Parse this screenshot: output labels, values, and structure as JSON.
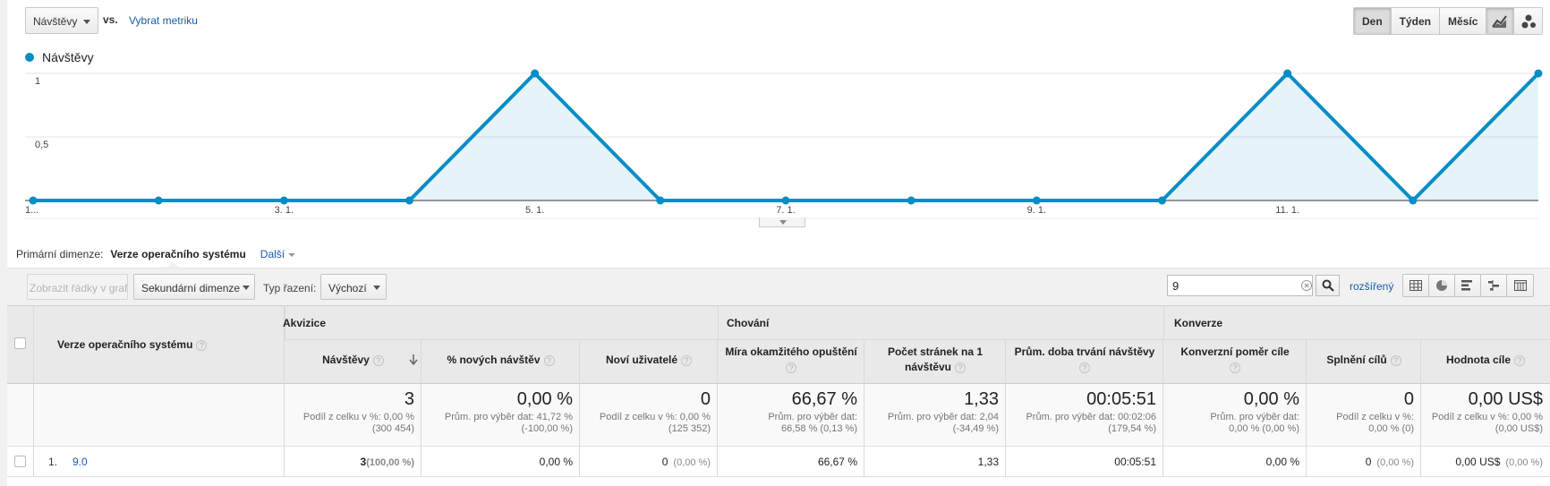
{
  "header": {
    "metric_select": "Návštěvy",
    "vs_label": "vs.",
    "choose_metric": "Vybrat metriku",
    "period_buttons": [
      "Den",
      "Týden",
      "Měsíc"
    ],
    "active_period": "Den"
  },
  "chart_data": {
    "type": "area",
    "series": [
      {
        "name": "Návštěvy",
        "color": "#058dc7",
        "values": [
          0,
          0,
          0,
          0,
          1,
          0,
          0,
          0,
          0,
          0,
          1,
          0,
          1
        ]
      }
    ],
    "x_tick_labels": [
      "1...",
      "3. 1.",
      "5. 1.",
      "7. 1.",
      "9. 1.",
      "11. 1."
    ],
    "y_tick_labels": [
      "1",
      "0,5"
    ],
    "ylim": [
      0,
      1
    ],
    "grid": true
  },
  "dimension": {
    "label": "Primární dimenze:",
    "current": "Verze operačního systému",
    "more": "Další"
  },
  "toolbar": {
    "plot_rows": "Zobrazit řádky v grafu",
    "secondary_dimension": "Sekundární dimenze",
    "sort_label": "Typ řazení:",
    "sort_value": "Výchozí",
    "search_value": "9",
    "advanced": "rozšířený"
  },
  "table": {
    "dimension_header": "Verze operačního systému",
    "groups": [
      "Akvizice",
      "Chování",
      "Konverze"
    ],
    "columns": [
      {
        "label": "Návštěvy",
        "total": "3",
        "total_sub": "Podíl z celku v %: 0,00 %\n(300 454)",
        "row_value": "3",
        "row_pct": "(100,00 %)"
      },
      {
        "label": "% nových návštěv",
        "total": "0,00 %",
        "total_sub": "Prům. pro výběr dat: 41,72 %\n(-100,00 %)",
        "row_value": "0,00 %",
        "row_pct": ""
      },
      {
        "label": "Noví uživatelé",
        "total": "0",
        "total_sub": "Podíl z celku v %: 0,00 %\n(125 352)",
        "row_value": "0",
        "row_pct": "(0,00 %)"
      },
      {
        "label": "Míra okamžitého opuštění",
        "total": "66,67 %",
        "total_sub": "Prům. pro výběr dat:\n66,58 % (0,13 %)",
        "row_value": "66,67 %",
        "row_pct": ""
      },
      {
        "label": "Počet stránek na 1 návštěvu",
        "total": "1,33",
        "total_sub": "Prům. pro výběr dat: 2,04\n(-34,49 %)",
        "row_value": "1,33",
        "row_pct": ""
      },
      {
        "label": "Prům. doba trvání návštěvy",
        "total": "00:05:51",
        "total_sub": "Prům. pro výběr dat: 00:02:06\n(179,54 %)",
        "row_value": "00:05:51",
        "row_pct": ""
      },
      {
        "label": "Konverzní poměr cíle",
        "total": "0,00 %",
        "total_sub": "Prům. pro výběr dat:\n0,00 % (0,00 %)",
        "row_value": "0,00 %",
        "row_pct": ""
      },
      {
        "label": "Splnění cílů",
        "total": "0",
        "total_sub": "Podíl z celku v %:\n0,00 % (0)",
        "row_value": "0",
        "row_pct": "(0,00 %)"
      },
      {
        "label": "Hodnota cíle",
        "total": "0,00 US$",
        "total_sub": "Podíl z celku v %: 0,00 %\n(0,00 US$)",
        "row_value": "0,00 US$",
        "row_pct": "(0,00 %)"
      }
    ],
    "rows": [
      {
        "index": "1.",
        "dimension": "9.0"
      }
    ]
  }
}
